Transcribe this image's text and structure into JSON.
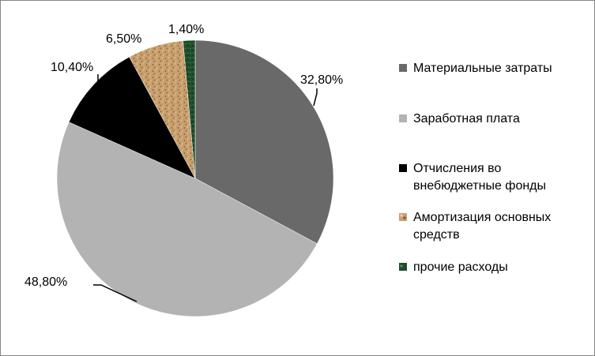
{
  "chart_data": {
    "type": "pie",
    "title": "",
    "slices": [
      {
        "label": "Материальные затраты",
        "value": 32.8,
        "display": "32,80%",
        "color": "#696969",
        "pattern": "solid"
      },
      {
        "label": "Заработная плата",
        "value": 48.8,
        "display": "48,80%",
        "color": "#b3b3b3",
        "pattern": "solid"
      },
      {
        "label": "Отчисления во внебюджетные фонды",
        "value": 10.4,
        "display": "10,40%",
        "color": "#000000",
        "pattern": "solid"
      },
      {
        "label": "Амортизация основных средств",
        "value": 6.5,
        "display": "6,50%",
        "color": "#c49a6c",
        "pattern": "cork"
      },
      {
        "label": "прочие расходы",
        "value": 1.4,
        "display": "1,40%",
        "color": "#1f4d2c",
        "pattern": "green-marble"
      }
    ],
    "legend": {
      "position": "right",
      "items": [
        [
          "Материальные затраты"
        ],
        [
          "Заработная плата"
        ],
        [
          "Отчисления во",
          "внебюджетные фонды"
        ],
        [
          "Амортизация основных",
          "средств"
        ],
        [
          "прочие расходы"
        ]
      ]
    }
  }
}
